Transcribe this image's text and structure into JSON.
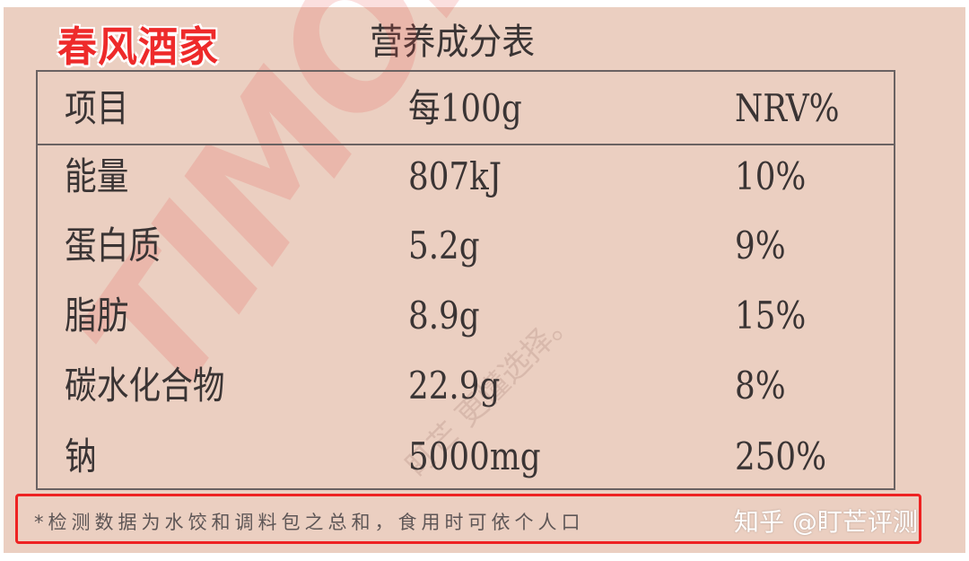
{
  "brand": "春风酒家",
  "title": "营养成分表",
  "table": {
    "headers": [
      "项目",
      "每100g",
      "NRV%"
    ],
    "rows": [
      {
        "item": "能量",
        "per100g": "807kJ",
        "nrv": "10%"
      },
      {
        "item": "蛋白质",
        "per100g": "5.2g",
        "nrv": "9%"
      },
      {
        "item": "脂肪",
        "per100g": "8.9g",
        "nrv": "15%"
      },
      {
        "item": "碳水化合物",
        "per100g": "22.9g",
        "nrv": "8%"
      },
      {
        "item": "钠",
        "per100g": "5000mg",
        "nrv": "250%"
      }
    ]
  },
  "watermark": {
    "logo": "TIMON",
    "slogan": "盯芒 更懂选择。"
  },
  "footnote": "*检测数据为水饺和调料包之总和，食用时可依个人口",
  "credit": "知乎 @盯芒评测",
  "colors": {
    "background": "#ebcfc1",
    "brand": "#ee2a2a",
    "highlight_box": "#ee2222"
  }
}
